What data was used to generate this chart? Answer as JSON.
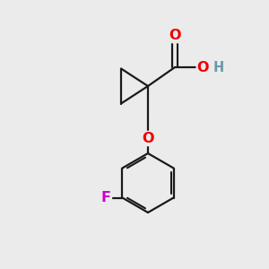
{
  "background_color": "#ebebeb",
  "bond_color": "#1a1a1a",
  "bond_width": 1.6,
  "atom_colors": {
    "O": "#ee0000",
    "H": "#6a9aaa",
    "F": "#cc00cc",
    "C": "#1a1a1a"
  },
  "font_size": 11.5
}
